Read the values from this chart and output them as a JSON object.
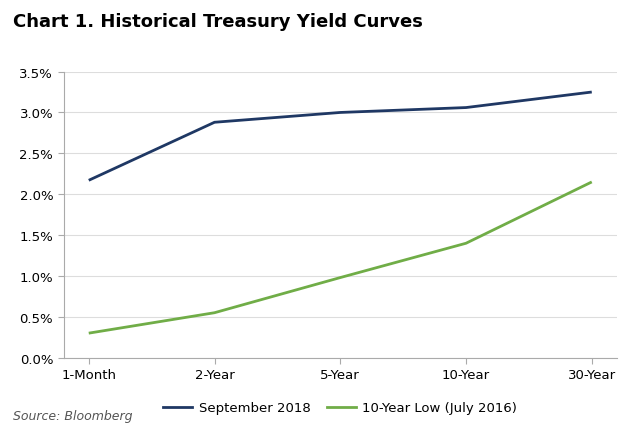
{
  "title": "Chart 1. Historical Treasury Yield Curves",
  "categories": [
    "1-Month",
    "2-Year",
    "5-Year",
    "10-Year",
    "30-Year"
  ],
  "series": [
    {
      "label": "September 2018",
      "values": [
        0.0217,
        0.0288,
        0.03,
        0.0306,
        0.0325
      ],
      "color": "#1f3864",
      "linewidth": 2.0
    },
    {
      "label": "10-Year Low (July 2016)",
      "values": [
        0.003,
        0.0055,
        0.0098,
        0.014,
        0.0215
      ],
      "color": "#70ad47",
      "linewidth": 2.0
    }
  ],
  "ylim": [
    0.0,
    0.035
  ],
  "yticks": [
    0.0,
    0.005,
    0.01,
    0.015,
    0.02,
    0.025,
    0.03,
    0.035
  ],
  "ytick_labels": [
    "0.0%",
    "0.5%",
    "1.0%",
    "1.5%",
    "2.0%",
    "2.5%",
    "3.0%",
    "3.5%"
  ],
  "source": "Source: Bloomberg",
  "background_color": "#ffffff",
  "grid_color": "#dddddd",
  "title_fontsize": 13,
  "tick_fontsize": 9.5,
  "legend_fontsize": 9.5,
  "source_fontsize": 9
}
